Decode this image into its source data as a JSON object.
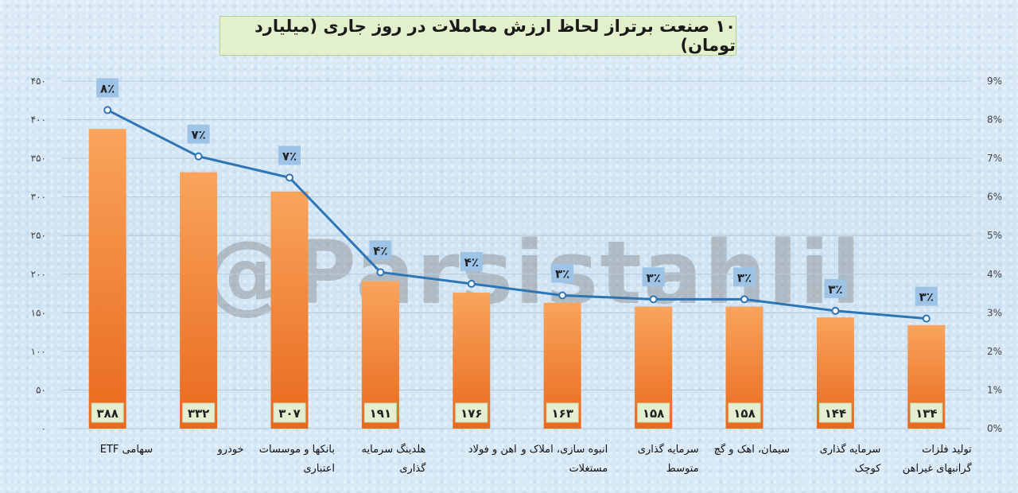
{
  "chart_data": {
    "type": "bar",
    "title": "۱۰ صنعت برتراز لحاظ ارزش معاملات در روز جاری (میلیارد تومان)",
    "categories": [
      [
        "سهامی ETF"
      ],
      [
        "خودرو"
      ],
      [
        "بانکها و موسسات",
        "اعتباری"
      ],
      [
        "هلدینگ سرمایه",
        "گذاری"
      ],
      [
        "اهن و فولاد"
      ],
      [
        "انبوه سازی، املاک و",
        "مستغلات"
      ],
      [
        "سرمایه گذاری",
        "متوسط"
      ],
      [
        "سیمان، اهک و گچ"
      ],
      [
        "سرمایه گذاری",
        "کوچک"
      ],
      [
        "تولید فلزات",
        "گرانبهای غیراهن"
      ]
    ],
    "series": [
      {
        "type": "bar",
        "values": [
          388,
          332,
          307,
          191,
          176,
          163,
          158,
          158,
          144,
          134
        ],
        "labels": [
          "۳۸۸",
          "۳۳۲",
          "۳۰۷",
          "۱۹۱",
          "۱۷۶",
          "۱۶۳",
          "۱۵۸",
          "۱۵۸",
          "۱۴۴",
          "۱۳۴"
        ],
        "axis": "left",
        "color": "#ee7d2b"
      },
      {
        "type": "line",
        "values": [
          8.25,
          7.05,
          6.5,
          4.05,
          3.75,
          3.45,
          3.35,
          3.35,
          3.05,
          2.85
        ],
        "labels": [
          "۸٪",
          "۷٪",
          "۷٪",
          "۴٪",
          "۴٪",
          "۳٪",
          "۳٪",
          "۳٪",
          "۳٪",
          "۳٪"
        ],
        "axis": "right",
        "color": "#2e75b6"
      }
    ],
    "y_left": {
      "ylim": [
        0,
        450
      ],
      "ticks": [
        0,
        50,
        100,
        150,
        200,
        250,
        300,
        350,
        400,
        450
      ],
      "tick_labels": [
        "۰",
        "۵۰",
        "۱۰۰",
        "۱۵۰",
        "۲۰۰",
        "۲۵۰",
        "۳۰۰",
        "۳۵۰",
        "۴۰۰",
        "۴۵۰"
      ]
    },
    "y_right": {
      "ylim": [
        0,
        9
      ],
      "ticks": [
        0,
        1,
        2,
        3,
        4,
        5,
        6,
        7,
        8,
        9
      ],
      "tick_labels": [
        "0%",
        "1%",
        "2%",
        "3%",
        "4%",
        "5%",
        "6%",
        "7%",
        "8%",
        "9%"
      ]
    },
    "grid": true,
    "legend": "none"
  },
  "watermark": "@Parsistahlil",
  "colors": {
    "bar_gradient_top": "#f9a45c",
    "bar_gradient_bottom": "#e8691c",
    "line": "#2e75b6",
    "value_label_bg": "#e3efd0",
    "percent_label_bg": "#9dc3e6"
  }
}
